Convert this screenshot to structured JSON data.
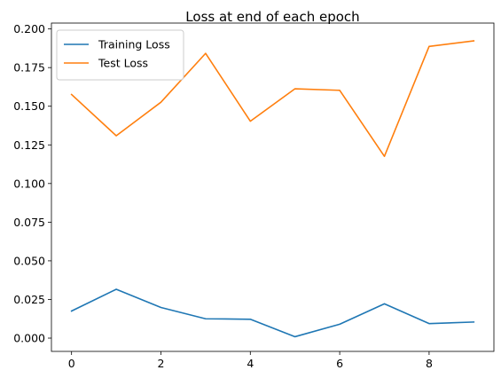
{
  "chart_data": {
    "type": "line",
    "title": "Loss at end of each epoch",
    "xlabel": "",
    "ylabel": "",
    "x": [
      0,
      1,
      2,
      3,
      4,
      5,
      6,
      7,
      8,
      9
    ],
    "xlim": [
      -0.45,
      9.45
    ],
    "ylim": [
      -0.0086,
      0.2038
    ],
    "xticks": [
      0,
      2,
      4,
      6,
      8
    ],
    "yticks": [
      0.0,
      0.025,
      0.05,
      0.075,
      0.1,
      0.125,
      0.15,
      0.175,
      0.2
    ],
    "ytick_labels": [
      "0.000",
      "0.025",
      "0.050",
      "0.075",
      "0.100",
      "0.125",
      "0.150",
      "0.175",
      "0.200"
    ],
    "grid": false,
    "legend_location": "top-left",
    "series": [
      {
        "name": "Training Loss",
        "color": "#1f77b4",
        "values": [
          0.0175,
          0.0316,
          0.0198,
          0.0125,
          0.0122,
          0.0009,
          0.009,
          0.0222,
          0.0094,
          0.0104
        ]
      },
      {
        "name": "Test Loss",
        "color": "#ff7f0e",
        "values": [
          0.1576,
          0.1309,
          0.1526,
          0.1842,
          0.1403,
          0.1613,
          0.1603,
          0.1176,
          0.1887,
          0.1923
        ]
      }
    ]
  }
}
